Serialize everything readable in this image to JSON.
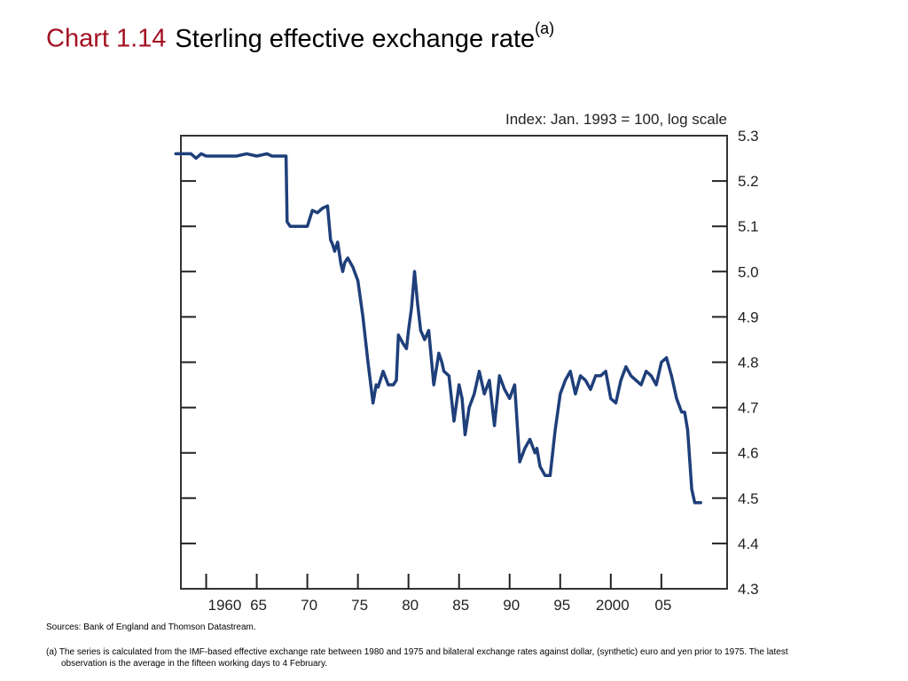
{
  "title": {
    "number": "Chart 1.14",
    "text": "Sterling effective exchange rate",
    "superscript": "(a)"
  },
  "chart_data": {
    "type": "line",
    "axis_note": "Index: Jan. 1993 = 100, log scale",
    "xlim": [
      1957.5,
      2011.5
    ],
    "ylim": [
      4.3,
      5.3
    ],
    "x_ticks": [
      1960,
      1965,
      1970,
      1975,
      1980,
      1985,
      1990,
      1995,
      2000,
      2005
    ],
    "x_tick_labels": [
      "1960",
      "65",
      "70",
      "75",
      "80",
      "85",
      "90",
      "95",
      "2000",
      "05"
    ],
    "y_ticks": [
      4.3,
      4.4,
      4.5,
      4.6,
      4.7,
      4.8,
      4.9,
      5.0,
      5.1,
      5.2,
      5.3
    ],
    "y_tick_labels": [
      "4.3",
      "4.4",
      "4.5",
      "4.6",
      "4.7",
      "4.8",
      "4.9",
      "5.0",
      "5.1",
      "5.2",
      "5.3"
    ],
    "grid": false,
    "series_color": "#1f3f7a",
    "series": [
      {
        "name": "",
        "x": [
          1957.0,
          1957.5,
          1958.0,
          1958.5,
          1959.0,
          1959.5,
          1960.0,
          1961.0,
          1962.0,
          1963.0,
          1964.0,
          1965.0,
          1966.0,
          1966.5,
          1967.0,
          1967.5,
          1967.9,
          1968.0,
          1968.3,
          1968.6,
          1969.0,
          1970.0,
          1970.5,
          1971.0,
          1971.5,
          1972.0,
          1972.3,
          1972.5,
          1972.7,
          1973.0,
          1973.3,
          1973.5,
          1973.7,
          1974.0,
          1974.5,
          1975.0,
          1975.5,
          1976.0,
          1976.5,
          1976.8,
          1977.0,
          1977.5,
          1978.0,
          1978.5,
          1978.8,
          1979.0,
          1979.5,
          1979.8,
          1980.0,
          1980.3,
          1980.6,
          1980.9,
          1981.2,
          1981.6,
          1982.0,
          1982.5,
          1983.0,
          1983.3,
          1983.5,
          1984.0,
          1984.5,
          1985.0,
          1985.3,
          1985.6,
          1986.0,
          1986.5,
          1987.0,
          1987.5,
          1988.0,
          1988.5,
          1989.0,
          1989.5,
          1990.0,
          1990.5,
          1991.0,
          1991.5,
          1992.0,
          1992.5,
          1992.7,
          1993.0,
          1993.5,
          1994.0,
          1994.5,
          1995.0,
          1995.5,
          1996.0,
          1996.5,
          1997.0,
          1997.5,
          1998.0,
          1998.5,
          1999.0,
          1999.5,
          2000.0,
          2000.5,
          2001.0,
          2001.5,
          2002.0,
          2002.5,
          2003.0,
          2003.5,
          2004.0,
          2004.5,
          2005.0,
          2005.5,
          2006.0,
          2006.5,
          2007.0,
          2007.3,
          2007.6,
          2008.0,
          2008.3,
          2008.5,
          2008.7,
          2008.8,
          2008.9
        ],
        "y": [
          5.26,
          5.26,
          5.26,
          5.26,
          5.25,
          5.26,
          5.255,
          5.255,
          5.255,
          5.255,
          5.26,
          5.255,
          5.26,
          5.255,
          5.255,
          5.255,
          5.255,
          5.11,
          5.1,
          5.1,
          5.1,
          5.1,
          5.135,
          5.13,
          5.14,
          5.145,
          5.07,
          5.06,
          5.045,
          5.065,
          5.02,
          5.0,
          5.02,
          5.03,
          5.01,
          4.98,
          4.9,
          4.8,
          4.71,
          4.75,
          4.745,
          4.78,
          4.75,
          4.75,
          4.76,
          4.86,
          4.84,
          4.83,
          4.87,
          4.92,
          5.0,
          4.93,
          4.87,
          4.85,
          4.87,
          4.75,
          4.82,
          4.8,
          4.78,
          4.77,
          4.67,
          4.75,
          4.72,
          4.64,
          4.7,
          4.73,
          4.78,
          4.73,
          4.76,
          4.66,
          4.77,
          4.74,
          4.72,
          4.75,
          4.58,
          4.61,
          4.63,
          4.6,
          4.61,
          4.57,
          4.55,
          4.55,
          4.65,
          4.73,
          4.76,
          4.78,
          4.73,
          4.77,
          4.76,
          4.74,
          4.77,
          4.77,
          4.78,
          4.72,
          4.71,
          4.76,
          4.79,
          4.77,
          4.76,
          4.75,
          4.78,
          4.77,
          4.75,
          4.8,
          4.81,
          4.77,
          4.72,
          4.69,
          4.69,
          4.65,
          4.52,
          4.49,
          4.49,
          4.49,
          4.49,
          4.49
        ]
      }
    ]
  },
  "sources": "Sources:  Bank of England and Thomson Datastream.",
  "footnote": "(a) The series is calculated from the IMF-based effective exchange rate between 1980 and 1975 and bilateral exchange rates against dollar, (synthetic) euro and yen prior to 1975.  The latest observation is the average in the fifteen working days to 4 February."
}
